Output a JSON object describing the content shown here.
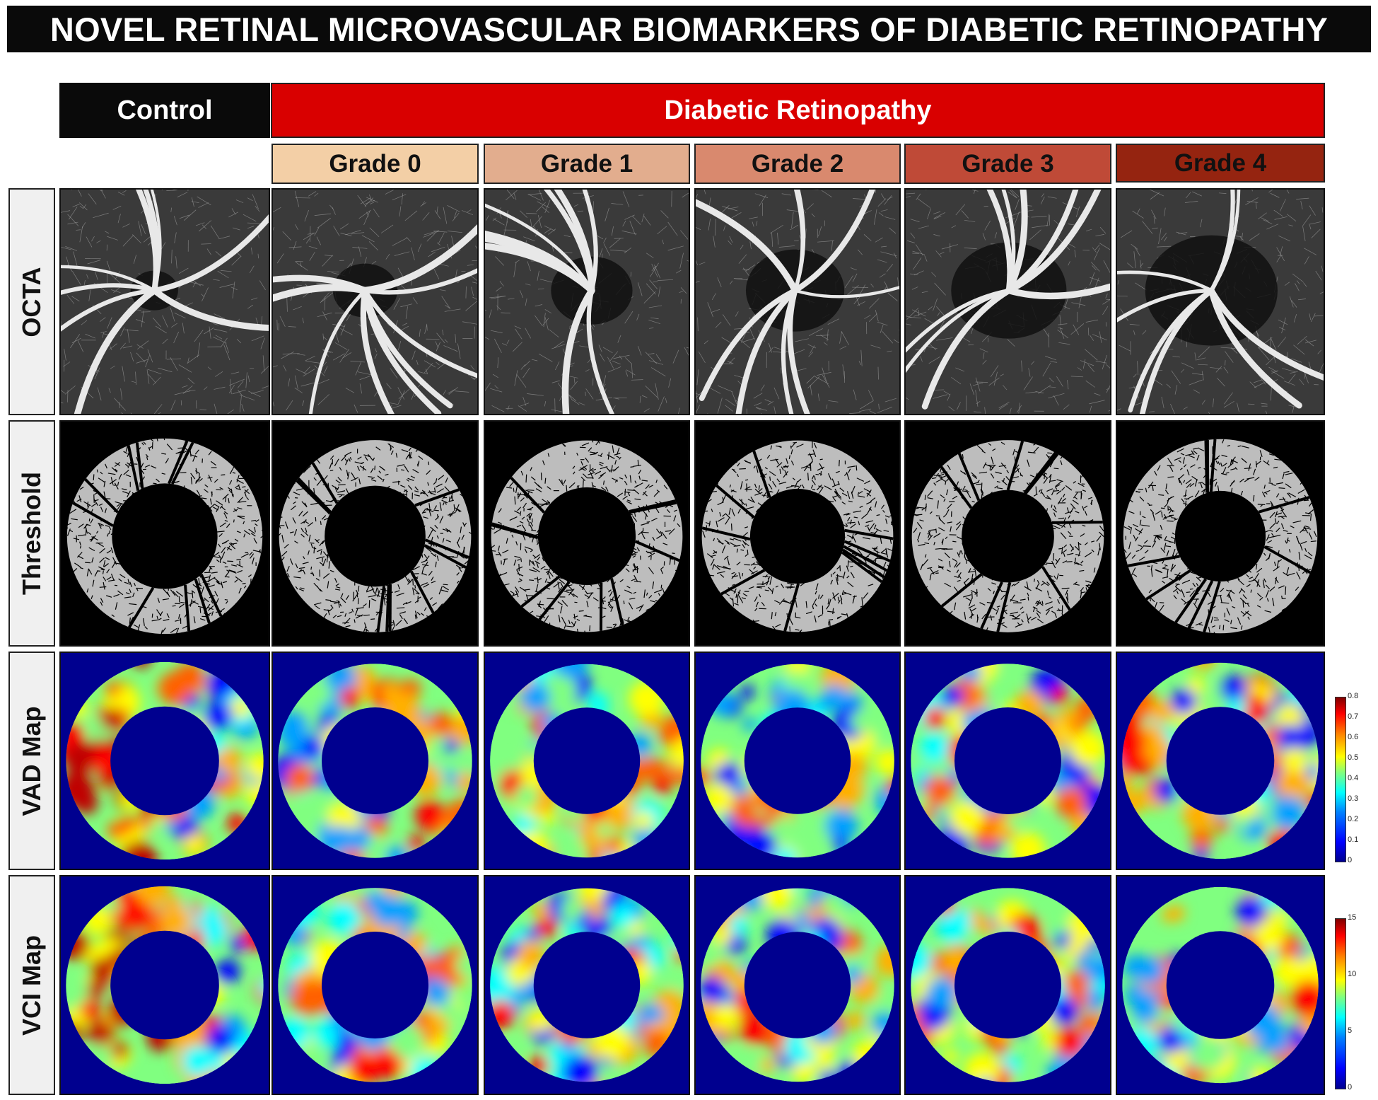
{
  "title": "NOVEL RETINAL MICROVASCULAR BIOMARKERS OF DIABETIC RETINOPATHY",
  "groups": {
    "control": "Control",
    "dr": "Diabetic Retinopathy"
  },
  "grades": [
    {
      "label": "Grade 0",
      "color": "#f3cfa6"
    },
    {
      "label": "Grade 1",
      "color": "#e2ad8e"
    },
    {
      "label": "Grade 2",
      "color": "#d9896e"
    },
    {
      "label": "Grade 3",
      "color": "#bf4a37"
    },
    {
      "label": "Grade 4",
      "color": "#952410"
    }
  ],
  "rows": [
    "OCTA",
    "Threshold",
    "VAD Map",
    "VCI Map"
  ],
  "colorbars": {
    "vad": {
      "ticks": [
        "0.8",
        "0.7",
        "0.6",
        "0.5",
        "0.4",
        "0.3",
        "0.2",
        "0.1",
        "0"
      ]
    },
    "vci": {
      "ticks": [
        "15",
        "10",
        "5",
        "0"
      ]
    }
  },
  "colors": {
    "control_header": "#0a0a0a",
    "dr_header": "#d90000",
    "map_background": "#00008f"
  }
}
